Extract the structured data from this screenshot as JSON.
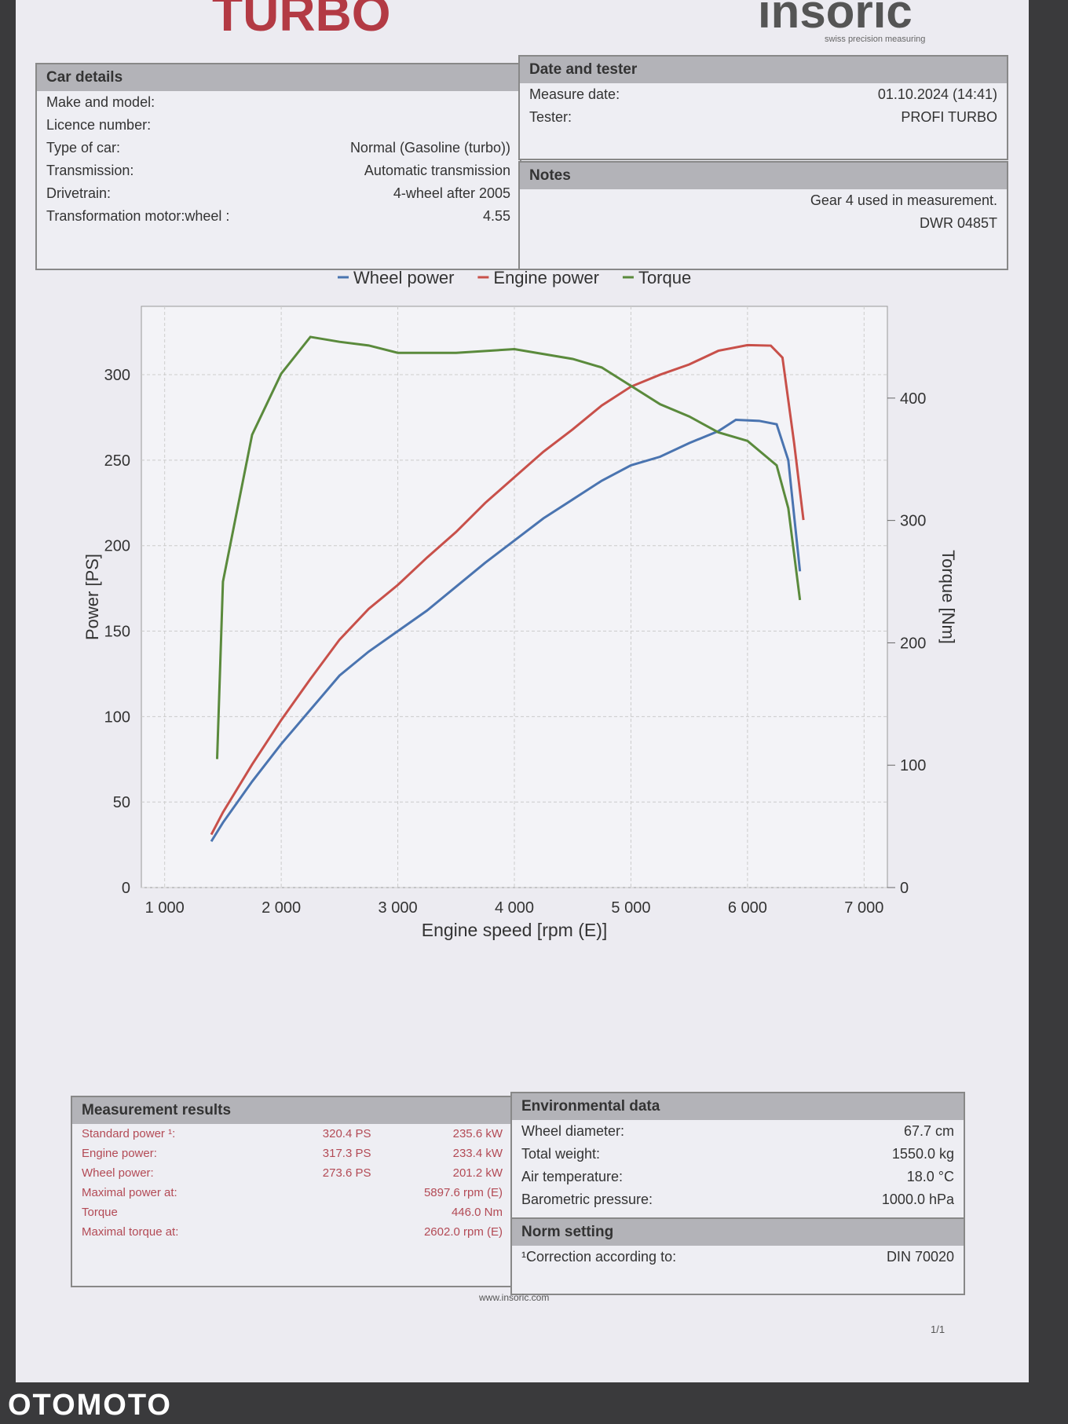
{
  "header": {
    "brand": "TURBO",
    "logo": "insoric",
    "logo_tagline": "swiss precision measuring"
  },
  "car_details": {
    "title": "Car details",
    "rows": [
      [
        "Make and model:",
        ""
      ],
      [
        "Licence number:",
        ""
      ],
      [
        "Type of car:",
        "Normal (Gasoline (turbo))"
      ],
      [
        "Transmission:",
        "Automatic transmission"
      ],
      [
        "Drivetrain:",
        "4-wheel after 2005"
      ],
      [
        "Transformation motor:wheel :",
        "4.55"
      ]
    ]
  },
  "date_and_tester": {
    "title": "Date and tester",
    "rows": [
      [
        "Measure date:",
        "01.10.2024 (14:41)"
      ],
      [
        "Tester:",
        "PROFI TURBO"
      ]
    ]
  },
  "notes": {
    "title": "Notes",
    "lines": [
      "Gear 4 used in measurement.",
      "DWR 0485T"
    ]
  },
  "chart_data": {
    "type": "line",
    "xlabel": "Engine speed [rpm (E)]",
    "ylabel": "Power [PS]",
    "y2label": "Torque [Nm]",
    "grid": true,
    "legend": "top",
    "xlim": [
      800,
      7200
    ],
    "xticks": [
      {
        "value": 1000,
        "label": "1 000"
      },
      {
        "value": 2000,
        "label": "2 000"
      },
      {
        "value": 3000,
        "label": "3 000"
      },
      {
        "value": 4000,
        "label": "4 000"
      },
      {
        "value": 5000,
        "label": "5 000"
      },
      {
        "value": 6000,
        "label": "6 000"
      },
      {
        "value": 7000,
        "label": "7 000"
      }
    ],
    "ylim": [
      0,
      340
    ],
    "yticks": [
      0,
      50,
      100,
      150,
      200,
      250,
      300
    ],
    "y2lim": [
      0,
      475
    ],
    "y2ticks": [
      0,
      100,
      200,
      300,
      400
    ],
    "series": [
      {
        "name": "Wheel power",
        "color": "#4a74b0",
        "x": [
          1400,
          1500,
          1750,
          2000,
          2250,
          2500,
          2750,
          3000,
          3250,
          3500,
          3750,
          4000,
          4250,
          4500,
          4750,
          5000,
          5250,
          5500,
          5750,
          5900,
          6100,
          6250,
          6350,
          6450
        ],
        "values": [
          27,
          38,
          62,
          84,
          104,
          124,
          138,
          150,
          162,
          176,
          190,
          203,
          216,
          227,
          238,
          247,
          252,
          260,
          267,
          273.6,
          273,
          271,
          250,
          185
        ]
      },
      {
        "name": "Engine power",
        "color": "#c8504a",
        "x": [
          1400,
          1500,
          1750,
          2000,
          2250,
          2500,
          2750,
          3000,
          3250,
          3500,
          3750,
          4000,
          4250,
          4500,
          4750,
          5000,
          5250,
          5500,
          5750,
          6000,
          6200,
          6300,
          6400,
          6480
        ],
        "values": [
          31,
          44,
          72,
          98,
          122,
          145,
          163,
          177,
          193,
          208,
          225,
          240,
          255,
          268,
          282,
          293,
          300,
          306,
          314,
          317.3,
          317,
          310,
          260,
          215
        ]
      },
      {
        "name": "Torque",
        "color": "#5a8a3c",
        "axis": "y2",
        "x": [
          1450,
          1500,
          1750,
          2000,
          2250,
          2500,
          2750,
          3000,
          3500,
          4000,
          4500,
          4750,
          5000,
          5250,
          5500,
          5750,
          6000,
          6250,
          6350,
          6450
        ],
        "values": [
          105,
          250,
          370,
          420,
          450,
          446,
          443,
          437,
          437,
          440,
          432,
          425,
          410,
          395,
          385,
          372,
          365,
          345,
          310,
          235
        ]
      }
    ]
  },
  "measurement_results": {
    "title": "Measurement results",
    "rows": [
      [
        "Standard power ¹:",
        "320.4 PS",
        "235.6 kW"
      ],
      [
        "Engine power:",
        "317.3 PS",
        "233.4 kW"
      ],
      [
        "Wheel power:",
        "273.6 PS",
        "201.2 kW"
      ],
      [
        "Maximal power at:",
        "5897.6 rpm (E)",
        ""
      ],
      [
        "Torque",
        "",
        "446.0 Nm"
      ],
      [
        "Maximal torque at:",
        "2602.0 rpm (E)",
        ""
      ]
    ]
  },
  "environmental_data": {
    "title": "Environmental data",
    "rows": [
      [
        "Wheel diameter:",
        "67.7 cm"
      ],
      [
        "Total weight:",
        "1550.0 kg"
      ],
      [
        "Air temperature:",
        "18.0 °C"
      ],
      [
        "Barometric pressure:",
        "1000.0 hPa"
      ]
    ]
  },
  "norm_setting": {
    "title": "Norm setting",
    "rows": [
      [
        "¹Correction according to:",
        "DIN 70020"
      ]
    ]
  },
  "footer": {
    "website": "www.insoric.com",
    "page": "1/1",
    "watermark": "OTOMOTO"
  }
}
